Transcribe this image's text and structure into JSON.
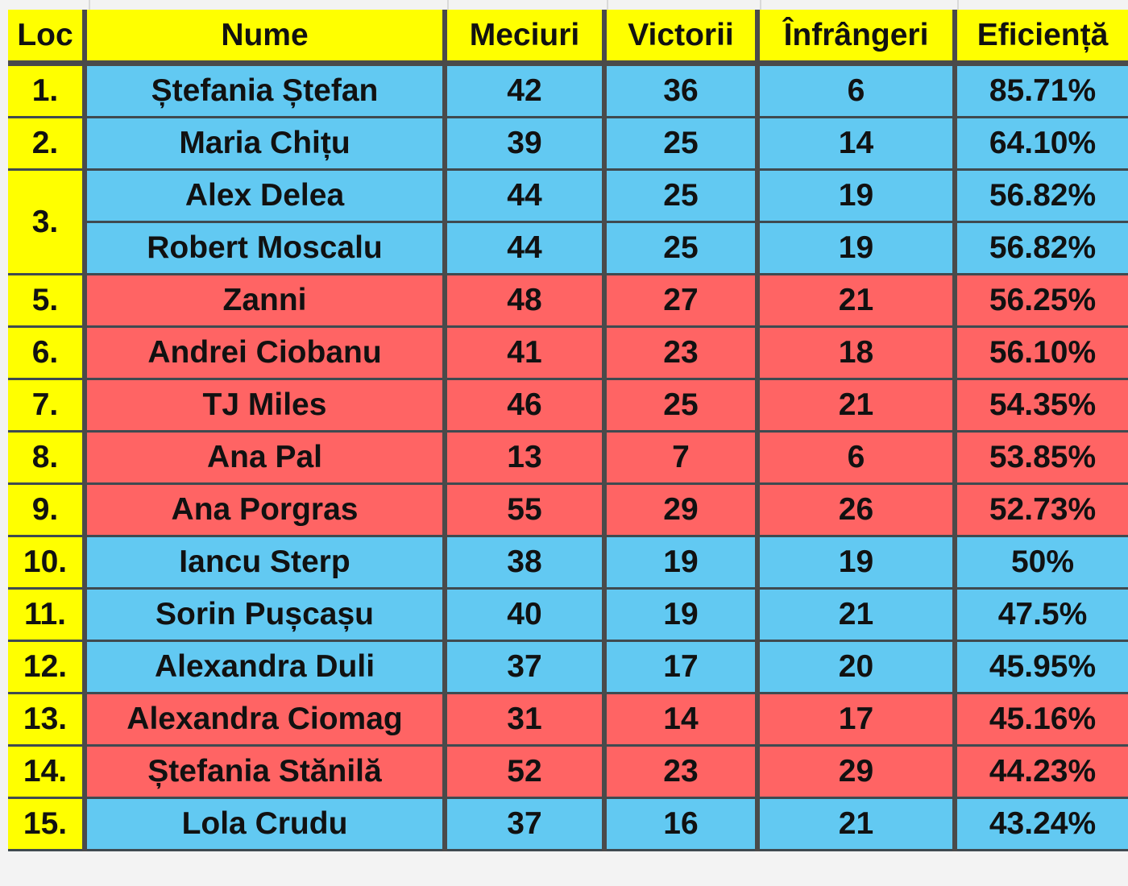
{
  "colors": {
    "header": "#ffff00",
    "loc": "#ffff00",
    "blue": "#62c9f2",
    "red": "#ff6464",
    "border": "#4a4a4a"
  },
  "headers": [
    "Loc",
    "Nume",
    "Meciuri",
    "Victorii",
    "Înfrângeri",
    "Eficiență"
  ],
  "rows": [
    {
      "loc": "1.",
      "name": "Ștefania Ștefan",
      "m": "42",
      "v": "36",
      "i": "6",
      "e": "85.71%",
      "color": "blue"
    },
    {
      "loc": "2.",
      "name": "Maria Chițu",
      "m": "39",
      "v": "25",
      "i": "14",
      "e": "64.10%",
      "color": "blue"
    },
    {
      "loc": "3.",
      "name": "Alex Delea",
      "m": "44",
      "v": "25",
      "i": "19",
      "e": "56.82%",
      "color": "blue",
      "rowspan": 2
    },
    {
      "loc": "",
      "name": "Robert Moscalu",
      "m": "44",
      "v": "25",
      "i": "19",
      "e": "56.82%",
      "color": "blue",
      "merged": true
    },
    {
      "loc": "5.",
      "name": "Zanni",
      "m": "48",
      "v": "27",
      "i": "21",
      "e": "56.25%",
      "color": "red"
    },
    {
      "loc": "6.",
      "name": "Andrei Ciobanu",
      "m": "41",
      "v": "23",
      "i": "18",
      "e": "56.10%",
      "color": "red"
    },
    {
      "loc": "7.",
      "name": "TJ Miles",
      "m": "46",
      "v": "25",
      "i": "21",
      "e": "54.35%",
      "color": "red"
    },
    {
      "loc": "8.",
      "name": "Ana Pal",
      "m": "13",
      "v": "7",
      "i": "6",
      "e": "53.85%",
      "color": "red"
    },
    {
      "loc": "9.",
      "name": "Ana Porgras",
      "m": "55",
      "v": "29",
      "i": "26",
      "e": "52.73%",
      "color": "red"
    },
    {
      "loc": "10.",
      "name": "Iancu Sterp",
      "m": "38",
      "v": "19",
      "i": "19",
      "e": "50%",
      "color": "blue"
    },
    {
      "loc": "11.",
      "name": "Sorin Pușcașu",
      "m": "40",
      "v": "19",
      "i": "21",
      "e": "47.5%",
      "color": "blue"
    },
    {
      "loc": "12.",
      "name": "Alexandra Duli",
      "m": "37",
      "v": "17",
      "i": "20",
      "e": "45.95%",
      "color": "blue"
    },
    {
      "loc": "13.",
      "name": "Alexandra Ciomag",
      "m": "31",
      "v": "14",
      "i": "17",
      "e": "45.16%",
      "color": "red"
    },
    {
      "loc": "14.",
      "name": "Ștefania Stănilă",
      "m": "52",
      "v": "23",
      "i": "29",
      "e": "44.23%",
      "color": "red"
    },
    {
      "loc": "15.",
      "name": "Lola Crudu",
      "m": "37",
      "v": "16",
      "i": "21",
      "e": "43.24%",
      "color": "blue"
    }
  ]
}
